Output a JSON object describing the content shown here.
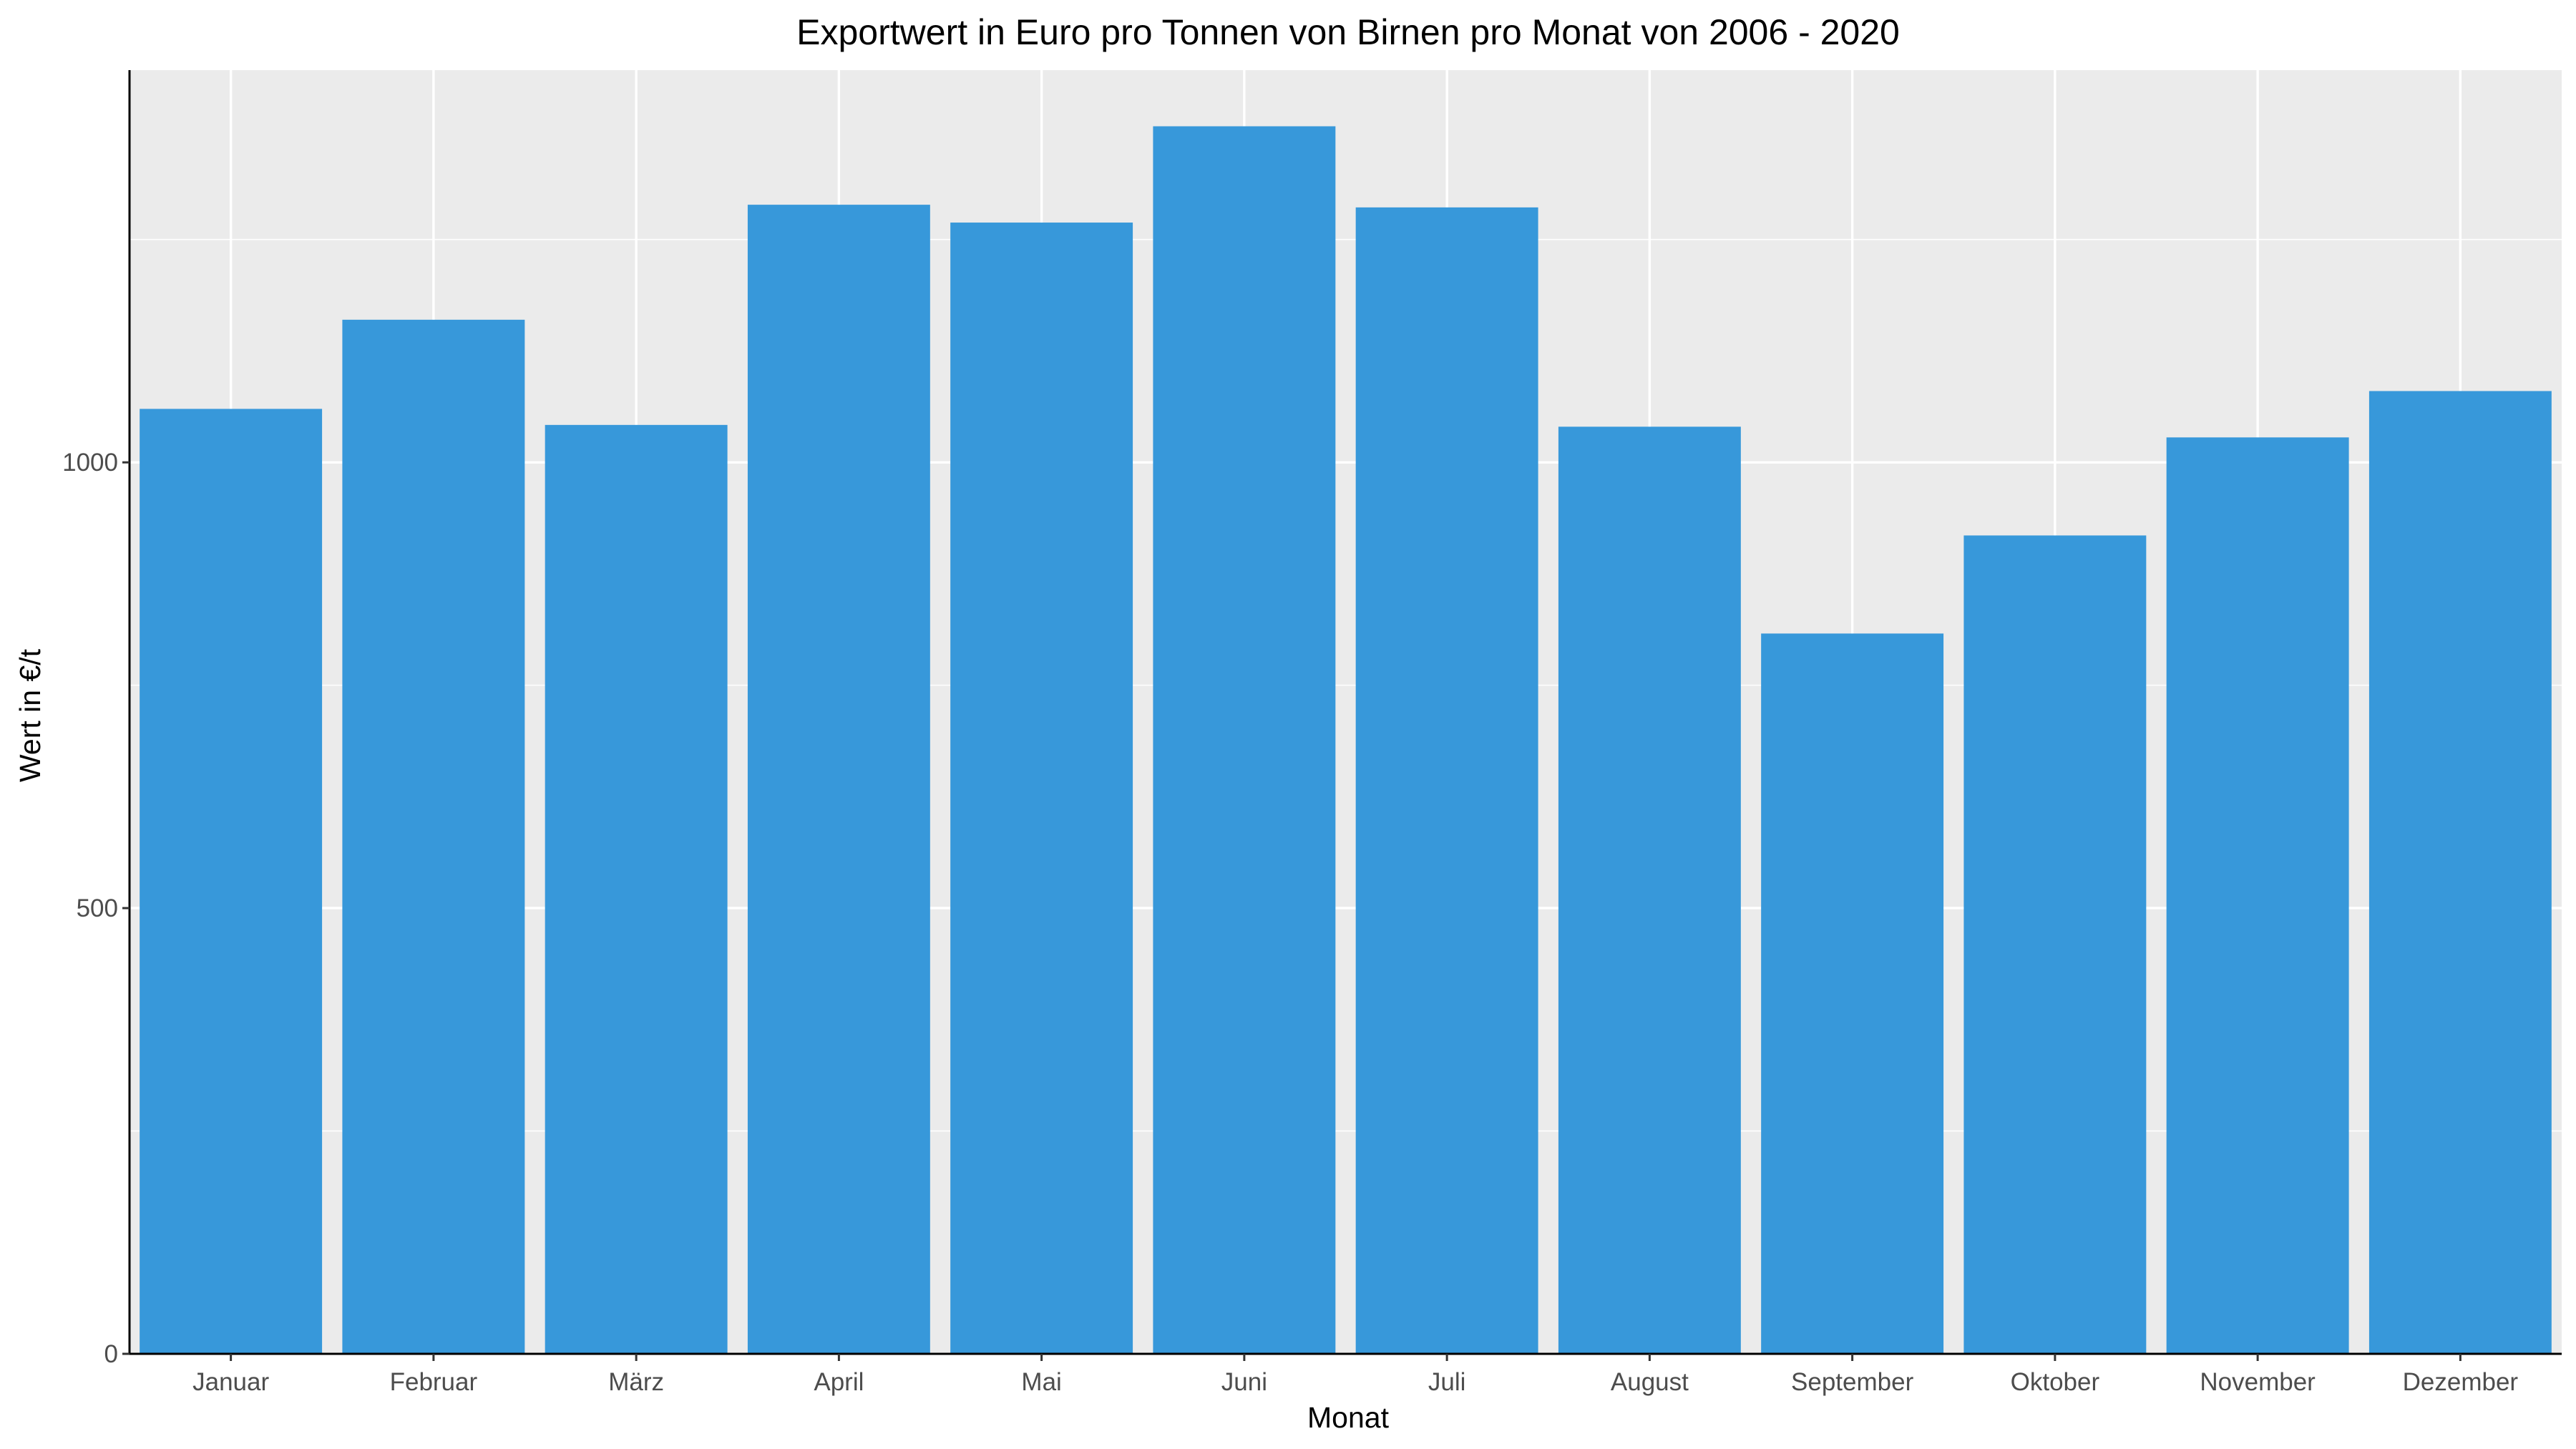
{
  "chart_data": {
    "type": "bar",
    "title": "Exportwert in Euro pro Tonnen von Birnen pro Monat von 2006 - 2020",
    "xlabel": "Monat",
    "ylabel": "Wert in €/t",
    "categories": [
      "Januar",
      "Februar",
      "März",
      "April",
      "Mai",
      "Juni",
      "Juli",
      "August",
      "September",
      "Oktober",
      "November",
      "Dezember"
    ],
    "values": [
      1060,
      1160,
      1042,
      1289,
      1269,
      1377,
      1286,
      1040,
      808,
      918,
      1028,
      1080
    ],
    "ylim": [
      0,
      1440
    ],
    "yticks": [
      0,
      500,
      1000
    ],
    "yticks_labels": [
      "0",
      "500",
      "1000"
    ],
    "grid": true,
    "panel_color": "#ebebeb",
    "bar_color": "#3798da"
  }
}
